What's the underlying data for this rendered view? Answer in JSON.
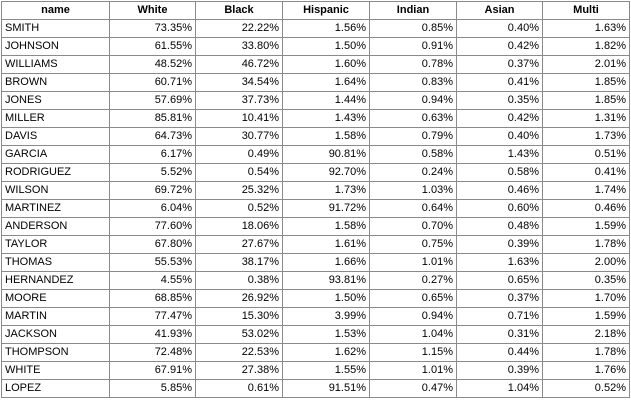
{
  "table": {
    "headers": [
      "name",
      "White",
      "Black",
      "Hispanic",
      "Indian",
      "Asian",
      "Multi"
    ],
    "rows": [
      [
        "SMITH",
        "73.35%",
        "22.22%",
        "1.56%",
        "0.85%",
        "0.40%",
        "1.63%"
      ],
      [
        "JOHNSON",
        "61.55%",
        "33.80%",
        "1.50%",
        "0.91%",
        "0.42%",
        "1.82%"
      ],
      [
        "WILLIAMS",
        "48.52%",
        "46.72%",
        "1.60%",
        "0.78%",
        "0.37%",
        "2.01%"
      ],
      [
        "BROWN",
        "60.71%",
        "34.54%",
        "1.64%",
        "0.83%",
        "0.41%",
        "1.85%"
      ],
      [
        "JONES",
        "57.69%",
        "37.73%",
        "1.44%",
        "0.94%",
        "0.35%",
        "1.85%"
      ],
      [
        "MILLER",
        "85.81%",
        "10.41%",
        "1.43%",
        "0.63%",
        "0.42%",
        "1.31%"
      ],
      [
        "DAVIS",
        "64.73%",
        "30.77%",
        "1.58%",
        "0.79%",
        "0.40%",
        "1.73%"
      ],
      [
        "GARCIA",
        "6.17%",
        "0.49%",
        "90.81%",
        "0.58%",
        "1.43%",
        "0.51%"
      ],
      [
        "RODRIGUEZ",
        "5.52%",
        "0.54%",
        "92.70%",
        "0.24%",
        "0.58%",
        "0.41%"
      ],
      [
        "WILSON",
        "69.72%",
        "25.32%",
        "1.73%",
        "1.03%",
        "0.46%",
        "1.74%"
      ],
      [
        "MARTINEZ",
        "6.04%",
        "0.52%",
        "91.72%",
        "0.64%",
        "0.60%",
        "0.46%"
      ],
      [
        "ANDERSON",
        "77.60%",
        "18.06%",
        "1.58%",
        "0.70%",
        "0.48%",
        "1.59%"
      ],
      [
        "TAYLOR",
        "67.80%",
        "27.67%",
        "1.61%",
        "0.75%",
        "0.39%",
        "1.78%"
      ],
      [
        "THOMAS",
        "55.53%",
        "38.17%",
        "1.66%",
        "1.01%",
        "1.63%",
        "2.00%"
      ],
      [
        "HERNANDEZ",
        "4.55%",
        "0.38%",
        "93.81%",
        "0.27%",
        "0.65%",
        "0.35%"
      ],
      [
        "MOORE",
        "68.85%",
        "26.92%",
        "1.50%",
        "0.65%",
        "0.37%",
        "1.70%"
      ],
      [
        "MARTIN",
        "77.47%",
        "15.30%",
        "3.99%",
        "0.94%",
        "0.71%",
        "1.59%"
      ],
      [
        "JACKSON",
        "41.93%",
        "53.02%",
        "1.53%",
        "1.04%",
        "0.31%",
        "2.18%"
      ],
      [
        "THOMPSON",
        "72.48%",
        "22.53%",
        "1.62%",
        "1.15%",
        "0.44%",
        "1.78%"
      ],
      [
        "WHITE",
        "67.91%",
        "27.38%",
        "1.55%",
        "1.01%",
        "0.39%",
        "1.76%"
      ],
      [
        "LOPEZ",
        "5.85%",
        "0.61%",
        "91.51%",
        "0.47%",
        "1.04%",
        "0.52%"
      ]
    ]
  }
}
